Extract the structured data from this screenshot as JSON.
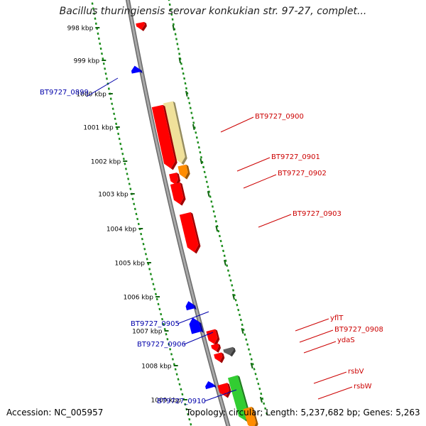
{
  "title": "Bacillus thuringiensis serovar konkukian str. 97-27, complet...",
  "footer": {
    "accession": "Accession: NC_005957",
    "summary": "Topology: circular; Length: 5,237,682 bp; Genes: 5,263"
  },
  "colors": {
    "backbone": "#8a8a8a",
    "ruler": "#1a8c1a",
    "forward_gene": "#ff0000",
    "reverse_gene": "#0000ff",
    "forward_label": "#cc0000",
    "reverse_label": "#0000aa"
  },
  "ruler_labels": [
    "998 kbp",
    "999 kbp",
    "1000 kbp",
    "1001 kbp",
    "1002 kbp",
    "1003 kbp",
    "1004 kbp",
    "1005 kbp",
    "1006 kbp",
    "1007 kbp",
    "1008 kbp",
    "1009 kbp"
  ],
  "gene_labels": [
    {
      "text": "BT9727_0899",
      "strand": "reverse"
    },
    {
      "text": "BT9727_0900",
      "strand": "forward"
    },
    {
      "text": "BT9727_0901",
      "strand": "forward"
    },
    {
      "text": "BT9727_0902",
      "strand": "forward"
    },
    {
      "text": "BT9727_0903",
      "strand": "forward"
    },
    {
      "text": "BT9727_0905",
      "strand": "reverse"
    },
    {
      "text": "yflT",
      "strand": "forward"
    },
    {
      "text": "BT9727_0908",
      "strand": "forward"
    },
    {
      "text": "BT9727_0906",
      "strand": "reverse"
    },
    {
      "text": "ydaS",
      "strand": "forward"
    },
    {
      "text": "rsbV",
      "strand": "forward"
    },
    {
      "text": "rsbW",
      "strand": "forward"
    },
    {
      "text": "BT9727_0910",
      "strand": "reverse"
    }
  ],
  "features": [
    {
      "name": "gene-998",
      "strand": "forward",
      "color": "#ff0000"
    },
    {
      "name": "gene-999",
      "strand": "reverse",
      "color": "#0000ff"
    },
    {
      "name": "gene-bt9727-0900-cds",
      "strand": "forward",
      "color": "#f0e19a"
    },
    {
      "name": "gene-bt9727-0900",
      "strand": "forward",
      "color": "#ff0000"
    },
    {
      "name": "gene-bt9727-0901",
      "strand": "forward",
      "color": "#ff0000"
    },
    {
      "name": "gene-bt9727-0902",
      "strand": "forward",
      "color": "#ff8c00"
    },
    {
      "name": "gene-1003",
      "strand": "forward",
      "color": "#ff0000"
    },
    {
      "name": "gene-bt9727-0903",
      "strand": "forward",
      "color": "#ff0000"
    },
    {
      "name": "gene-bt9727-0905",
      "strand": "reverse",
      "color": "#0000ff"
    },
    {
      "name": "gene-bt9727-0906",
      "strand": "reverse",
      "color": "#0000ff"
    },
    {
      "name": "gene-yflt",
      "strand": "forward",
      "color": "#ff0000"
    },
    {
      "name": "gene-bt9727-0908",
      "strand": "forward",
      "color": "#ff0000"
    },
    {
      "name": "gene-ydas-a",
      "strand": "forward",
      "color": "#ff0000"
    },
    {
      "name": "gene-ydas-b",
      "strand": "forward",
      "color": "#606060"
    },
    {
      "name": "gene-bt9727-0910",
      "strand": "reverse",
      "color": "#0000ff"
    },
    {
      "name": "gene-rsbv",
      "strand": "forward",
      "color": "#ff0000"
    },
    {
      "name": "gene-rsbw",
      "strand": "forward",
      "color": "#32cd32"
    },
    {
      "name": "gene-bottom-orange",
      "strand": "forward",
      "color": "#ff8c00"
    }
  ]
}
